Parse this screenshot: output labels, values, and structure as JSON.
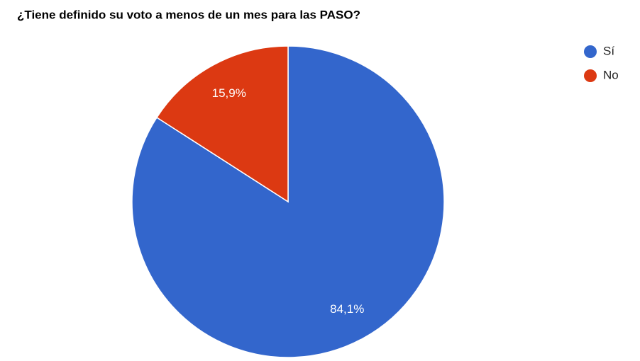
{
  "chart_data": {
    "type": "pie",
    "title": "¿Tiene definido su voto a menos de un mes para las PASO?",
    "categories": [
      "Sí",
      "No"
    ],
    "values": [
      84.1,
      15.9
    ],
    "value_labels": [
      "84,1%",
      "15,9%"
    ],
    "colors": [
      "#3366cc",
      "#dc3912"
    ],
    "legend": "right"
  }
}
